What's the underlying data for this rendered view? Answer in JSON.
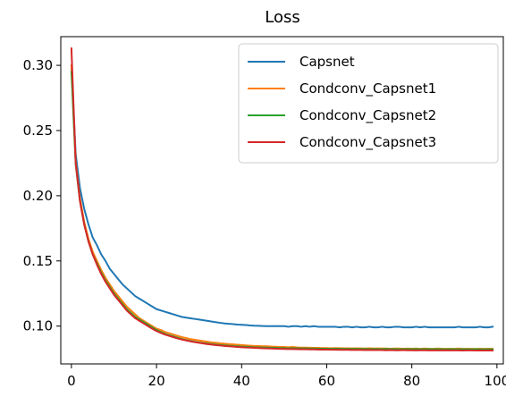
{
  "chart_data": {
    "type": "line",
    "title": "Loss",
    "xlabel": "",
    "ylabel": "",
    "xlim": [
      -2.5,
      101.5
    ],
    "ylim": [
      0.071,
      0.322
    ],
    "xticks": [
      0,
      20,
      40,
      60,
      80,
      100
    ],
    "yticks": [
      0.1,
      0.15,
      0.2,
      0.25,
      0.3
    ],
    "xtick_labels": [
      "0",
      "20",
      "40",
      "60",
      "80",
      "100"
    ],
    "ytick_labels": [
      "0.10",
      "0.15",
      "0.20",
      "0.25",
      "0.30"
    ],
    "grid": false,
    "legend_position": "top-right",
    "x": [
      0,
      1,
      2,
      3,
      4,
      5,
      6,
      7,
      8,
      9,
      10,
      11,
      12,
      13,
      14,
      15,
      16,
      17,
      18,
      19,
      20,
      21,
      22,
      23,
      24,
      25,
      26,
      27,
      28,
      29,
      30,
      31,
      32,
      33,
      34,
      35,
      36,
      37,
      38,
      39,
      40,
      41,
      42,
      43,
      44,
      45,
      46,
      47,
      48,
      49,
      50,
      51,
      52,
      53,
      54,
      55,
      56,
      57,
      58,
      59,
      60,
      61,
      62,
      63,
      64,
      65,
      66,
      67,
      68,
      69,
      70,
      71,
      72,
      73,
      74,
      75,
      76,
      77,
      78,
      79,
      80,
      81,
      82,
      83,
      84,
      85,
      86,
      87,
      88,
      89,
      90,
      91,
      92,
      93,
      94,
      95,
      96,
      97,
      98,
      99
    ],
    "series": [
      {
        "name": "Capsnet",
        "color": "#1f77b4",
        "values": [
          0.3,
          0.232,
          0.206,
          0.19,
          0.178,
          0.168,
          0.162,
          0.155,
          0.15,
          0.144,
          0.14,
          0.136,
          0.132,
          0.129,
          0.126,
          0.123,
          0.121,
          0.119,
          0.117,
          0.115,
          0.113,
          0.112,
          0.111,
          0.11,
          0.109,
          0.108,
          0.107,
          0.1065,
          0.106,
          0.1055,
          0.105,
          0.1045,
          0.104,
          0.1035,
          0.103,
          0.1025,
          0.102,
          0.1018,
          0.1015,
          0.1012,
          0.101,
          0.1008,
          0.1005,
          0.1003,
          0.1002,
          0.1001,
          0.1,
          0.1,
          0.1,
          0.1,
          0.1,
          0.0995,
          0.1,
          0.1,
          0.0995,
          0.1,
          0.0995,
          0.1,
          0.0995,
          0.0995,
          0.0995,
          0.0995,
          0.0995,
          0.099,
          0.0995,
          0.0995,
          0.099,
          0.0995,
          0.099,
          0.099,
          0.0995,
          0.099,
          0.099,
          0.0995,
          0.099,
          0.099,
          0.0995,
          0.0995,
          0.099,
          0.099,
          0.099,
          0.0995,
          0.099,
          0.0995,
          0.099,
          0.099,
          0.099,
          0.099,
          0.099,
          0.099,
          0.099,
          0.0995,
          0.099,
          0.099,
          0.099,
          0.099,
          0.0995,
          0.099,
          0.099,
          0.0995
        ]
      },
      {
        "name": "Condconv_Capsnet1",
        "color": "#ff7f0e",
        "values": [
          0.3,
          0.226,
          0.198,
          0.18,
          0.167,
          0.157,
          0.15,
          0.143,
          0.137,
          0.132,
          0.127,
          0.123,
          0.119,
          0.115,
          0.112,
          0.109,
          0.106,
          0.104,
          0.102,
          0.1,
          0.098,
          0.097,
          0.0955,
          0.0945,
          0.0935,
          0.0925,
          0.0915,
          0.0908,
          0.09,
          0.0895,
          0.089,
          0.0885,
          0.088,
          0.0875,
          0.0872,
          0.0868,
          0.0865,
          0.0862,
          0.086,
          0.0857,
          0.0855,
          0.0852,
          0.085,
          0.0848,
          0.0847,
          0.0845,
          0.0845,
          0.0843,
          0.0842,
          0.084,
          0.084,
          0.0838,
          0.084,
          0.0837,
          0.0835,
          0.0835,
          0.0834,
          0.0833,
          0.0833,
          0.0832,
          0.0832,
          0.083,
          0.0832,
          0.0831,
          0.083,
          0.083,
          0.0829,
          0.083,
          0.0829,
          0.0828,
          0.083,
          0.0828,
          0.0829,
          0.0828,
          0.0828,
          0.0827,
          0.0828,
          0.0828,
          0.0827,
          0.0828,
          0.0827,
          0.0828,
          0.0826,
          0.0828,
          0.0827,
          0.0826,
          0.0828,
          0.0827,
          0.0826,
          0.0827,
          0.0826,
          0.0828,
          0.0826,
          0.0827,
          0.0826,
          0.0826,
          0.0827,
          0.0826,
          0.0827,
          0.0826
        ]
      },
      {
        "name": "Condconv_Capsnet2",
        "color": "#2ca02c",
        "values": [
          0.295,
          0.224,
          0.196,
          0.178,
          0.165,
          0.155,
          0.148,
          0.141,
          0.135,
          0.13,
          0.125,
          0.121,
          0.117,
          0.113,
          0.11,
          0.107,
          0.105,
          0.103,
          0.101,
          0.099,
          0.097,
          0.0955,
          0.094,
          0.093,
          0.092,
          0.091,
          0.09,
          0.0893,
          0.0886,
          0.088,
          0.0875,
          0.087,
          0.0866,
          0.0862,
          0.0858,
          0.0855,
          0.0852,
          0.085,
          0.0847,
          0.0845,
          0.0843,
          0.0842,
          0.084,
          0.0838,
          0.0837,
          0.0836,
          0.0835,
          0.0834,
          0.0833,
          0.0832,
          0.0832,
          0.083,
          0.0831,
          0.083,
          0.0829,
          0.0829,
          0.0828,
          0.0828,
          0.0827,
          0.0827,
          0.0827,
          0.0826,
          0.0827,
          0.0826,
          0.0826,
          0.0825,
          0.0826,
          0.0825,
          0.0825,
          0.0825,
          0.0824,
          0.0825,
          0.0824,
          0.0824,
          0.0825,
          0.0824,
          0.0824,
          0.0823,
          0.0824,
          0.0824,
          0.0823,
          0.0824,
          0.0823,
          0.0823,
          0.0824,
          0.0823,
          0.0823,
          0.0823,
          0.0822,
          0.0823,
          0.0823,
          0.0822,
          0.0823,
          0.0822,
          0.0822,
          0.0823,
          0.0822,
          0.0822,
          0.0822,
          0.0822
        ]
      },
      {
        "name": "Condconv_Capsnet3",
        "color": "#d62728",
        "values": [
          0.313,
          0.225,
          0.196,
          0.178,
          0.165,
          0.155,
          0.147,
          0.14,
          0.134,
          0.129,
          0.124,
          0.12,
          0.116,
          0.112,
          0.109,
          0.106,
          0.104,
          0.102,
          0.1,
          0.098,
          0.0962,
          0.0948,
          0.0935,
          0.0925,
          0.0915,
          0.0905,
          0.0897,
          0.089,
          0.0883,
          0.0877,
          0.0872,
          0.0867,
          0.0862,
          0.0858,
          0.0854,
          0.0851,
          0.0848,
          0.0845,
          0.0843,
          0.084,
          0.0838,
          0.0836,
          0.0835,
          0.0833,
          0.0832,
          0.083,
          0.0829,
          0.0828,
          0.0827,
          0.0826,
          0.0825,
          0.0824,
          0.0824,
          0.0823,
          0.0822,
          0.0822,
          0.0821,
          0.0821,
          0.082,
          0.082,
          0.082,
          0.0819,
          0.0819,
          0.0818,
          0.0818,
          0.0818,
          0.0817,
          0.0817,
          0.0817,
          0.0816,
          0.0817,
          0.0816,
          0.0816,
          0.0816,
          0.0815,
          0.0816,
          0.0815,
          0.0815,
          0.0816,
          0.0815,
          0.0815,
          0.0814,
          0.0815,
          0.0815,
          0.0814,
          0.0815,
          0.0814,
          0.0814,
          0.0815,
          0.0814,
          0.0814,
          0.0814,
          0.0813,
          0.0814,
          0.0814,
          0.0813,
          0.0814,
          0.0813,
          0.0814,
          0.0813
        ]
      }
    ]
  }
}
